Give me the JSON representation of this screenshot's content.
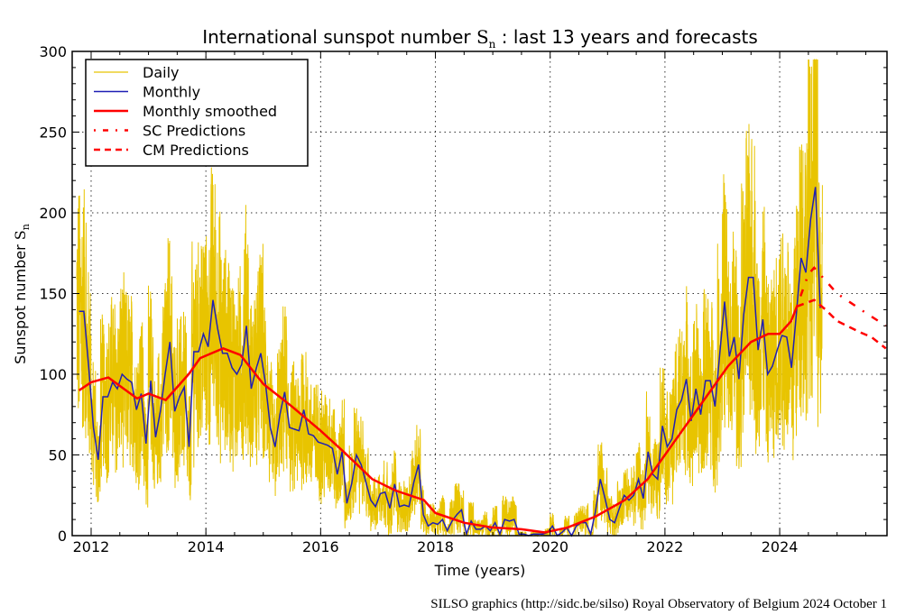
{
  "chart_data": {
    "type": "line",
    "title": {
      "prefix": "International sunspot number ",
      "symbol": "S",
      "sub": "n",
      "suffix": " : last 13 years and forecasts"
    },
    "xlabel": "Time (years)",
    "ylabel": {
      "prefix": "Sunspot number ",
      "symbol": "S",
      "sub": "n"
    },
    "xlim": [
      2011.67,
      2025.87
    ],
    "ylim": [
      0,
      300
    ],
    "xticks": [
      "2012",
      "2014",
      "2016",
      "2018",
      "2020",
      "2022",
      "2024"
    ],
    "yticks": [
      "0",
      "50",
      "100",
      "150",
      "200",
      "250",
      "300"
    ],
    "grid": true,
    "legend": {
      "placement": "top-left",
      "entries": [
        {
          "label": "Daily",
          "color": "#e8c400",
          "style": "solid"
        },
        {
          "label": "Monthly",
          "color": "#1f1fb4",
          "style": "solid"
        },
        {
          "label": "Monthly smoothed",
          "color": "#ff0000",
          "style": "solid"
        },
        {
          "label": "SC Predictions",
          "color": "#ff0000",
          "style": "dashdot"
        },
        {
          "label": "CM Predictions",
          "color": "#ff0000",
          "style": "dashed"
        }
      ]
    },
    "series": [
      {
        "name": "Monthly",
        "start": 2011.79,
        "step_years": 0.08333,
        "values": [
          139,
          139,
          105,
          67,
          47,
          86,
          86,
          95,
          91,
          100,
          97,
          95,
          78,
          88,
          57,
          96,
          61,
          77,
          100,
          120,
          77,
          86,
          92,
          55,
          114,
          114,
          125,
          117,
          146,
          128,
          113,
          113,
          104,
          100,
          106,
          130,
          91,
          103,
          113,
          94,
          67,
          55,
          75,
          89,
          67,
          66,
          65,
          78,
          63,
          62,
          58,
          57,
          56,
          54,
          38,
          52,
          20,
          32,
          50,
          44,
          33,
          22,
          18,
          26,
          27,
          17,
          32,
          18,
          19,
          18,
          33,
          44,
          13,
          6,
          8,
          7,
          10,
          3,
          9,
          13,
          16,
          1,
          9,
          4,
          4,
          6,
          3,
          8,
          1,
          10,
          9,
          10,
          1,
          1,
          0,
          1,
          1,
          1,
          2,
          6,
          0,
          2,
          5,
          0,
          6,
          8,
          8,
          1,
          15,
          35,
          23,
          10,
          8,
          17,
          25,
          22,
          25,
          35,
          23,
          52,
          38,
          35,
          68,
          55,
          60,
          78,
          84,
          97,
          71,
          91,
          75,
          96,
          96,
          80,
          113,
          145,
          111,
          123,
          97,
          137,
          160,
          160,
          115,
          134,
          100,
          105,
          115,
          124,
          123,
          104,
          137,
          172,
          163,
          196,
          216,
          141
        ]
      },
      {
        "name": "Monthly smoothed",
        "x": [
          2011.79,
          2012.0,
          2012.3,
          2012.8,
          2013.0,
          2013.3,
          2013.7,
          2013.9,
          2014.3,
          2014.6,
          2015.0,
          2015.5,
          2016.0,
          2016.4,
          2016.9,
          2017.3,
          2017.8,
          2018.0,
          2018.5,
          2019.0,
          2019.5,
          2019.9,
          2020.3,
          2020.8,
          2021.3,
          2021.7,
          2022.0,
          2022.4,
          2022.8,
          2023.1,
          2023.5,
          2023.8,
          2024.0,
          2024.2,
          2024.3
        ],
        "y": [
          90,
          95,
          98,
          85,
          88,
          84,
          100,
          110,
          116,
          112,
          94,
          80,
          65,
          52,
          35,
          28,
          22,
          14,
          8,
          5,
          4,
          2,
          5,
          12,
          22,
          35,
          50,
          70,
          90,
          105,
          120,
          125,
          125,
          133,
          142
        ]
      },
      {
        "name": "SC Predictions",
        "x": [
          2024.3,
          2024.5,
          2024.6,
          2025.0,
          2025.5,
          2025.85
        ],
        "y": [
          142,
          162,
          166,
          150,
          138,
          130
        ]
      },
      {
        "name": "CM Predictions",
        "x": [
          2024.3,
          2024.6,
          2024.8,
          2025.0,
          2025.4,
          2025.6,
          2025.85
        ],
        "y": [
          142,
          146,
          140,
          133,
          126,
          123,
          116
        ]
      },
      {
        "name": "Daily",
        "derived_from": "Monthly"
      }
    ]
  },
  "footer": "SILSO graphics (http://sidc.be/silso)  Royal Observatory of Belgium  2024 October 1"
}
